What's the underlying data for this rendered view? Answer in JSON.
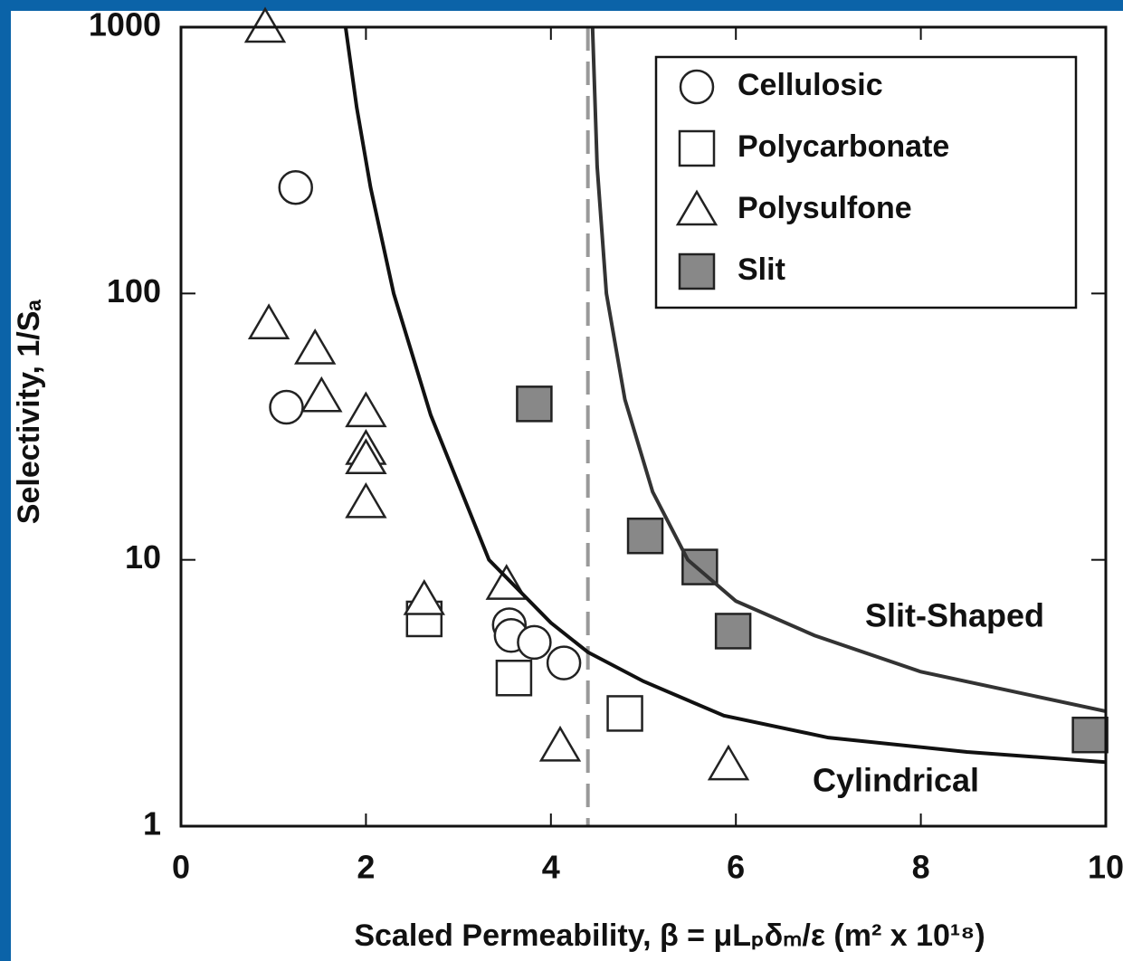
{
  "chart_data": {
    "type": "scatter",
    "xlabel": "Scaled Permeability, β = μLₚδₘ/ε (m² x 10¹⁸)",
    "ylabel": "Selectivity, 1/Sₐ",
    "xlim": [
      0,
      10
    ],
    "ylim": [
      1,
      1000
    ],
    "log_y": true,
    "xticks": [
      0,
      2,
      4,
      6,
      8,
      10
    ],
    "yticks": [
      1,
      10,
      100,
      1000
    ],
    "legend": "upper right",
    "vline": 4.4,
    "series": [
      {
        "name": "Cellulosic",
        "marker": "circle",
        "color": "#ffffff",
        "x": [
          1.24,
          1.14,
          3.55,
          3.57,
          3.82,
          4.14
        ],
        "values": [
          250,
          37.4,
          5.7,
          5.2,
          4.9,
          4.1
        ]
      },
      {
        "name": "Polycarbonate",
        "marker": "square",
        "color": "#ffffff",
        "x": [
          3.6,
          4.8,
          2.63
        ],
        "values": [
          3.6,
          2.65,
          6.0
        ]
      },
      {
        "name": "Polysulfone",
        "marker": "triangle",
        "color": "#ffffff",
        "x": [
          0.91,
          0.95,
          1.45,
          1.52,
          2.0,
          2.0,
          2.0,
          2.0,
          2.63,
          3.52,
          4.1,
          5.92
        ],
        "values": [
          1000,
          77,
          62,
          41,
          36,
          26,
          24,
          16.4,
          7.1,
          8.1,
          2.0,
          1.7
        ]
      },
      {
        "name": "Slit",
        "marker": "square",
        "color": "#888888",
        "x": [
          3.82,
          5.02,
          5.61,
          5.97,
          9.83
        ],
        "values": [
          38.5,
          12.3,
          9.4,
          5.4,
          2.2
        ]
      },
      {
        "name": "Cylindrical",
        "marker": "line",
        "color": "#111111",
        "x": [
          1.78,
          1.9,
          2.05,
          2.3,
          2.7,
          3.33,
          4.0,
          4.4,
          5.0,
          5.87,
          7,
          8.5,
          10
        ],
        "values": [
          1000,
          500,
          250,
          100,
          35,
          10,
          5.8,
          4.5,
          3.5,
          2.6,
          2.15,
          1.9,
          1.74
        ]
      },
      {
        "name": "Slit-Shaped",
        "marker": "line",
        "color": "#333333",
        "x": [
          4.45,
          4.5,
          4.6,
          4.8,
          5.1,
          5.48,
          6,
          6.85,
          8,
          10
        ],
        "values": [
          1000,
          300,
          100,
          40,
          18,
          10,
          7,
          5.2,
          3.8,
          2.7
        ]
      }
    ]
  }
}
